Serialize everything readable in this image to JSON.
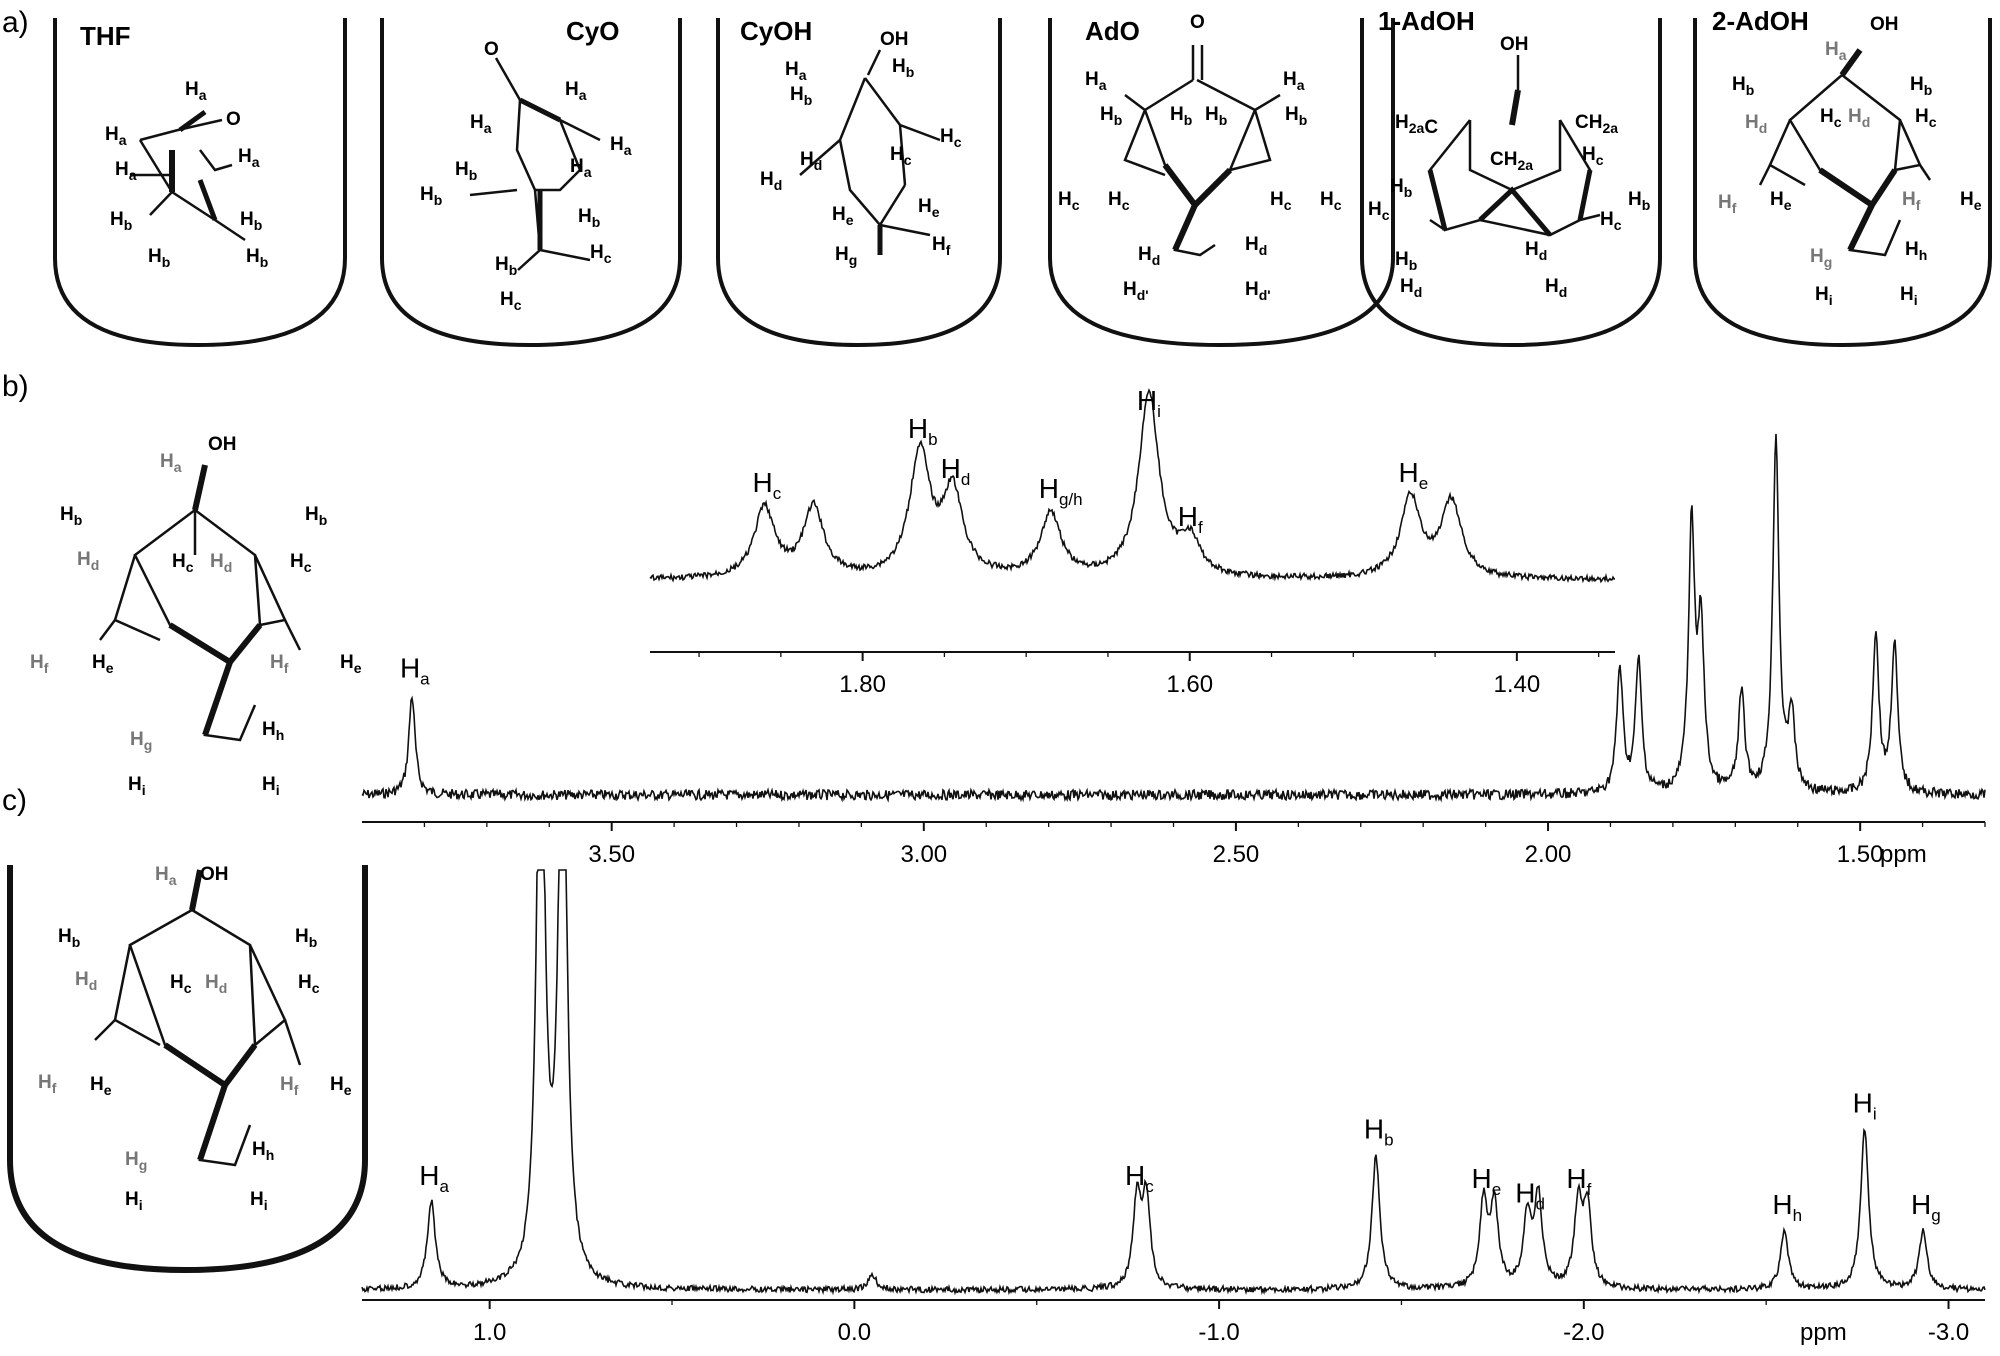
{
  "panels": {
    "a": "a)",
    "b": "b)",
    "c": "c)"
  },
  "panel_a": {
    "molecules": [
      {
        "title": "THF"
      },
      {
        "title": "CyO"
      },
      {
        "title": "CyOH"
      },
      {
        "title": "AdO"
      },
      {
        "title": "1-AdOH"
      },
      {
        "title": "2-AdOH"
      }
    ]
  },
  "chart_data": [
    {
      "type": "line",
      "description_key": "panel_b_main",
      "xlabel": "ppm",
      "x_reversed": true,
      "xlim": [
        3.9,
        1.3
      ],
      "xticks": [
        "3.50",
        "3.00",
        "2.50",
        "2.00",
        "1.50"
      ],
      "peaks": [
        {
          "label": "H",
          "sub": "a",
          "x": 3.82,
          "height": 0.28
        },
        {
          "x": 1.885,
          "height": 0.35
        },
        {
          "x": 1.855,
          "height": 0.37
        },
        {
          "x": 1.77,
          "height": 0.74
        },
        {
          "x": 1.755,
          "height": 0.45
        },
        {
          "x": 1.69,
          "height": 0.28
        },
        {
          "x": 1.635,
          "height": 1.0
        },
        {
          "x": 1.61,
          "height": 0.22
        },
        {
          "x": 1.475,
          "height": 0.45
        },
        {
          "x": 1.445,
          "height": 0.42
        }
      ]
    },
    {
      "type": "line",
      "description_key": "panel_b_inset",
      "xlabel": "",
      "x_reversed": true,
      "xlim": [
        1.93,
        1.34
      ],
      "xticks": [
        "1.80",
        "1.60",
        "1.40"
      ],
      "peaks": [
        {
          "label": "H",
          "sub": "c",
          "x": 1.86,
          "height": 0.35
        },
        {
          "x": 1.83,
          "height": 0.35
        },
        {
          "label": "H",
          "sub": "b",
          "x": 1.765,
          "height": 0.62
        },
        {
          "label": "H",
          "sub": "d",
          "x": 1.745,
          "height": 0.42
        },
        {
          "label": "H",
          "sub": "g/h",
          "x": 1.685,
          "height": 0.32
        },
        {
          "label": "H",
          "sub": "i",
          "x": 1.625,
          "height": 0.92
        },
        {
          "label": "H",
          "sub": "f",
          "x": 1.6,
          "height": 0.18
        },
        {
          "label": "H",
          "sub": "e",
          "x": 1.465,
          "height": 0.4
        },
        {
          "x": 1.44,
          "height": 0.38
        }
      ]
    },
    {
      "type": "line",
      "description_key": "panel_c_main",
      "xlabel": "ppm",
      "x_reversed": true,
      "xlim": [
        1.35,
        -3.1
      ],
      "xticks": [
        "1.0",
        "0.0",
        "-1.0",
        "-2.0",
        "-3.0"
      ],
      "peaks": [
        {
          "label": "H",
          "sub": "a",
          "x": 1.16,
          "height": 0.3
        },
        {
          "x": 0.86,
          "height": 2.2
        },
        {
          "x": 0.8,
          "height": 2.2
        },
        {
          "x": -0.05,
          "height": 0.05
        },
        {
          "label": "H",
          "sub": "c",
          "x": -0.775,
          "height": 0.3
        },
        {
          "x": -0.8,
          "height": 0.31
        },
        {
          "label": "H",
          "sub": "b",
          "x": -1.43,
          "height": 0.46
        },
        {
          "label": "H",
          "sub": "e",
          "x": -1.725,
          "height": 0.29
        },
        {
          "x": -1.755,
          "height": 0.28
        },
        {
          "label": "H",
          "sub": "d",
          "x": -1.845,
          "height": 0.24
        },
        {
          "x": -1.875,
          "height": 0.31
        },
        {
          "label": "H",
          "sub": "f",
          "x": -1.985,
          "height": 0.29
        },
        {
          "x": -2.01,
          "height": 0.27
        },
        {
          "label": "H",
          "sub": "h",
          "x": -2.55,
          "height": 0.2
        },
        {
          "label": "H",
          "sub": "i",
          "x": -2.77,
          "height": 0.55
        },
        {
          "label": "H",
          "sub": "g",
          "x": -2.93,
          "height": 0.2
        }
      ]
    }
  ],
  "axis_unit": "ppm"
}
